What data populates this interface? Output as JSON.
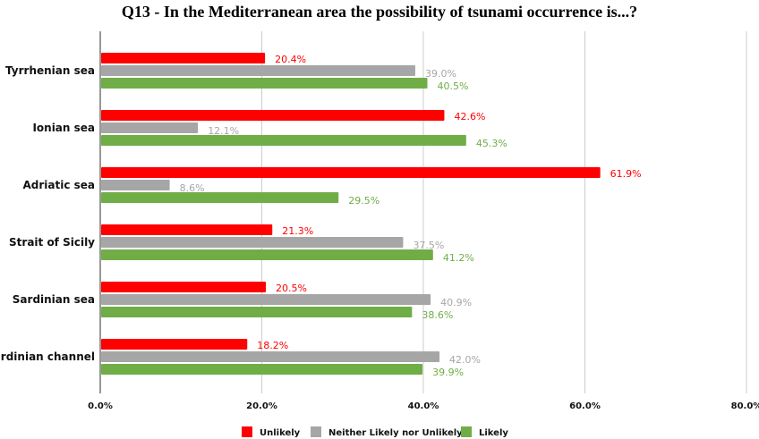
{
  "chart_data": {
    "type": "bar",
    "orientation": "horizontal",
    "title": "Q13 - In the Mediterranean area the possibility of tsunami occurrence is...?",
    "categories": [
      "Tyrrhenian sea",
      "Ionian sea",
      "Adriatic sea",
      "Strait of Sicily",
      "Sardinian sea",
      "Sardinian channel"
    ],
    "series": [
      {
        "name": "Unlikely",
        "color": "#ff0000",
        "values": [
          20.4,
          42.6,
          61.9,
          21.3,
          20.5,
          18.2
        ]
      },
      {
        "name": "Neither Likely nor Unlikely",
        "color": "#a6a6a6",
        "values": [
          39.0,
          12.1,
          8.6,
          37.5,
          40.9,
          42.0
        ]
      },
      {
        "name": "Likely",
        "color": "#70ad47",
        "values": [
          40.5,
          45.3,
          29.5,
          41.2,
          38.6,
          39.9
        ]
      }
    ],
    "xlim": [
      0,
      80
    ],
    "xticks": [
      "0.0%",
      "20.0%",
      "40.0%",
      "60.0%",
      "80.0%"
    ],
    "grid": true,
    "legend": "bottom",
    "value_format": "percent, one decimal"
  }
}
